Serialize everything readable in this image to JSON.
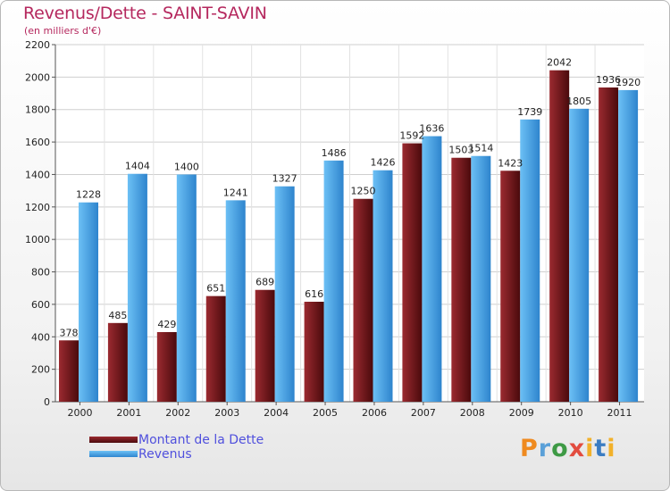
{
  "chart_data": {
    "type": "bar",
    "title": "Revenus/Dette - SAINT-SAVIN",
    "subtitle": "(en milliers d'€)",
    "categories": [
      "2000",
      "2001",
      "2002",
      "2003",
      "2004",
      "2005",
      "2006",
      "2007",
      "2008",
      "2009",
      "2010",
      "2011"
    ],
    "series": [
      {
        "name": "Montant de la Dette",
        "color": "#7b1a1e",
        "values": [
          378,
          485,
          429,
          651,
          689,
          616,
          1250,
          1592,
          1503,
          1423,
          2042,
          1936
        ]
      },
      {
        "name": "Revenus",
        "color": "#4aa3e6",
        "values": [
          1228,
          1404,
          1400,
          1241,
          1327,
          1486,
          1426,
          1636,
          1514,
          1739,
          1805,
          1920
        ]
      }
    ],
    "ylim": [
      0,
      2200
    ],
    "yticks": [
      0,
      200,
      400,
      600,
      800,
      1000,
      1200,
      1400,
      1600,
      1800,
      2000,
      2200
    ],
    "grid": true,
    "legend_position": "bottom-left"
  },
  "legend": {
    "items": [
      "Montant de la Dette",
      "Revenus"
    ]
  },
  "brand": {
    "logo_text": "Proxiti",
    "letters": [
      "P",
      "r",
      "o",
      "x",
      "i",
      "t",
      "i"
    ]
  }
}
